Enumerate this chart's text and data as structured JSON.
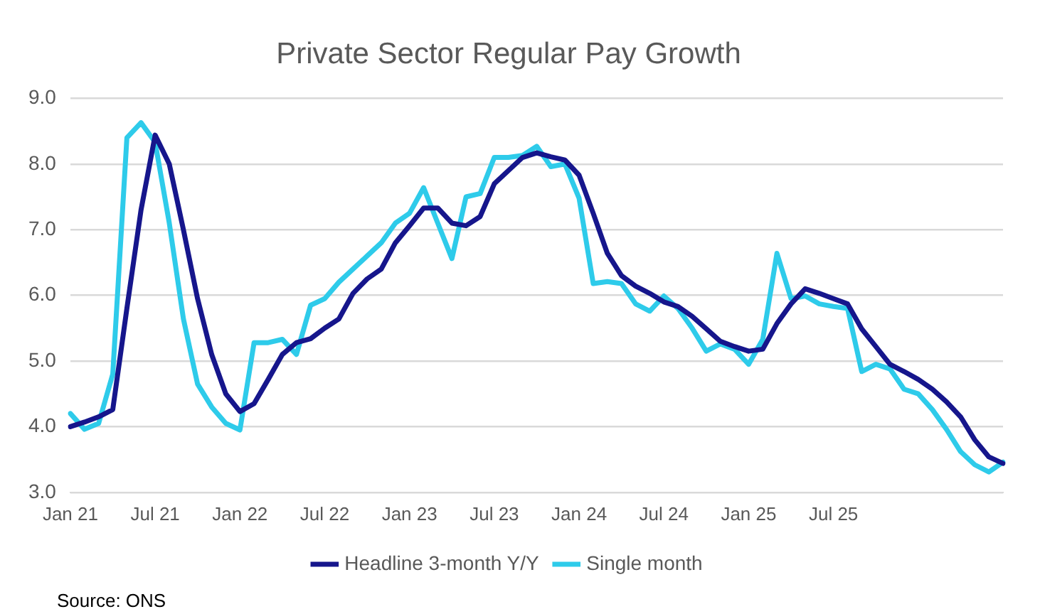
{
  "chart_data": {
    "type": "line",
    "title": "Private Sector Regular Pay Growth",
    "categories": [
      "Jan 21",
      null,
      null,
      null,
      null,
      null,
      "Jul 21",
      null,
      null,
      null,
      null,
      null,
      "Jan 22",
      null,
      null,
      null,
      null,
      null,
      "Jul 22",
      null,
      null,
      null,
      null,
      null,
      "Jan 23",
      null,
      null,
      null,
      null,
      null,
      "Jul 23",
      null,
      null,
      null,
      null,
      null,
      "Jan 24",
      null,
      null,
      null,
      null,
      null,
      "Jul 24",
      null,
      null,
      null,
      null,
      null,
      "Jan 25",
      null,
      null,
      null,
      null,
      null,
      "Jul 25",
      null,
      null,
      null,
      null,
      null,
      null,
      null,
      null,
      null,
      null,
      null,
      null
    ],
    "series": [
      {
        "name": "Headline 3-month Y/Y",
        "color": "#16168c",
        "values": [
          4.0,
          4.07,
          4.15,
          4.26,
          5.8,
          7.3,
          8.44,
          8.0,
          7.0,
          5.95,
          5.1,
          4.5,
          4.23,
          4.35,
          4.72,
          5.1,
          5.28,
          5.34,
          5.5,
          5.64,
          6.03,
          6.25,
          6.4,
          6.8,
          7.06,
          7.33,
          7.33,
          7.1,
          7.06,
          7.2,
          7.7,
          7.9,
          8.1,
          8.17,
          8.11,
          8.06,
          7.83,
          7.25,
          6.64,
          6.3,
          6.14,
          6.03,
          5.9,
          5.83,
          5.68,
          5.49,
          5.3,
          5.22,
          5.15,
          5.18,
          5.57,
          5.87,
          6.1,
          6.03,
          5.95,
          5.87,
          5.49,
          5.22,
          4.95,
          4.84,
          4.72,
          4.57,
          4.38,
          4.15,
          3.8,
          3.54,
          3.44
        ]
      },
      {
        "name": "Single month",
        "color": "#2ecbea",
        "values": [
          4.2,
          3.96,
          4.05,
          4.8,
          8.4,
          8.63,
          8.33,
          7.1,
          5.64,
          4.65,
          4.3,
          4.05,
          3.95,
          5.28,
          5.28,
          5.33,
          5.1,
          5.85,
          5.95,
          6.2,
          6.4,
          6.6,
          6.8,
          7.1,
          7.25,
          7.64,
          7.1,
          6.56,
          7.5,
          7.55,
          8.1,
          8.1,
          8.13,
          8.27,
          7.96,
          8.0,
          7.48,
          6.18,
          6.21,
          6.18,
          5.87,
          5.76,
          5.99,
          5.8,
          5.5,
          5.15,
          5.26,
          5.18,
          4.95,
          5.33,
          6.64,
          5.95,
          5.99,
          5.87,
          5.83,
          5.8,
          4.84,
          4.95,
          4.88,
          4.57,
          4.5,
          4.26,
          3.96,
          3.62,
          3.42,
          3.31,
          3.46
        ]
      }
    ],
    "ylim": [
      3,
      9
    ],
    "yticks": [
      {
        "value": 3,
        "label": "3.0"
      },
      {
        "value": 4,
        "label": "4.0"
      },
      {
        "value": 5,
        "label": "5.0"
      },
      {
        "value": 6,
        "label": "6.0"
      },
      {
        "value": 7,
        "label": "7.0"
      },
      {
        "value": 8,
        "label": "8.0"
      },
      {
        "value": 9,
        "label": "9.0"
      }
    ],
    "grid": "y",
    "legend": "bottom",
    "marker": "none",
    "line_style": "solid",
    "annotations": [
      "Source: ONS"
    ]
  }
}
